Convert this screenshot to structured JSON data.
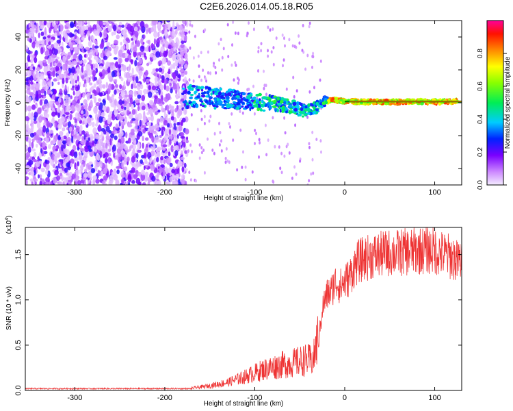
{
  "title": "C2E6.2026.014.05.18.R05",
  "chart_data": [
    {
      "type": "heatmap",
      "xlabel": "Height of straight line (km)",
      "ylabel": "Frequency (Hz)",
      "xlim": [
        -355,
        130
      ],
      "ylim": [
        -50,
        50
      ],
      "x_ticks": [
        -300,
        -200,
        -100,
        0,
        100
      ],
      "x_tick_labels": [
        "-300",
        "-200",
        "-100",
        "0",
        "100"
      ],
      "y_ticks": [
        -40,
        -20,
        0,
        20,
        40
      ],
      "y_tick_labels": [
        "-40",
        "-20",
        "0",
        "20",
        "40"
      ],
      "colorbar": {
        "label": "Normalized spectral amplitude",
        "range": [
          0,
          1
        ],
        "ticks": [
          0.0,
          0.2,
          0.4,
          0.6,
          0.8
        ],
        "tick_labels": [
          "0.0",
          "0.2",
          "0.4",
          "0.6",
          "0.8"
        ]
      },
      "ridge": [
        {
          "x": -175,
          "f": 4
        },
        {
          "x": -150,
          "f": 3
        },
        {
          "x": -120,
          "f": 2
        },
        {
          "x": -90,
          "f": 0
        },
        {
          "x": -70,
          "f": -1
        },
        {
          "x": -55,
          "f": -3
        },
        {
          "x": -45,
          "f": -5
        },
        {
          "x": -35,
          "f": -4
        },
        {
          "x": -25,
          "f": 0
        },
        {
          "x": -15,
          "f": 2
        },
        {
          "x": 0,
          "f": 1
        },
        {
          "x": 20,
          "f": 0.5
        },
        {
          "x": 60,
          "f": 0.5
        },
        {
          "x": 100,
          "f": 0.5
        },
        {
          "x": 130,
          "f": 1
        }
      ],
      "grid": false
    },
    {
      "type": "line",
      "xlabel": "Height of straight line (km)",
      "ylabel": "SNR (10 * v/v)",
      "y_multiplier": "(x10",
      "y_multiplier_exp": "4",
      "y_multiplier_close": ")",
      "xlim": [
        -355,
        130
      ],
      "ylim": [
        0,
        1.8
      ],
      "x_ticks": [
        -300,
        -200,
        -100,
        0,
        100
      ],
      "x_tick_labels": [
        "-300",
        "-200",
        "-100",
        "0",
        "100"
      ],
      "y_ticks": [
        0.0,
        0.5,
        1.0,
        1.5
      ],
      "y_tick_labels": [
        "0.0",
        "0.5",
        "1.0",
        "1.5"
      ],
      "series": [
        {
          "color": "#ee3333",
          "x": [
            -355,
            -300,
            -250,
            -200,
            -170,
            -150,
            -130,
            -110,
            -90,
            -70,
            -55,
            -45,
            -35,
            -30,
            -25,
            -20,
            -15,
            -10,
            -5,
            0,
            5,
            10,
            15,
            20,
            30,
            40,
            50,
            60,
            70,
            80,
            90,
            100,
            110,
            120,
            125,
            130
          ],
          "y": [
            0.02,
            0.02,
            0.02,
            0.02,
            0.02,
            0.04,
            0.07,
            0.12,
            0.18,
            0.22,
            0.24,
            0.26,
            0.26,
            0.45,
            0.9,
            1.05,
            1.1,
            1.2,
            1.15,
            1.2,
            1.25,
            1.35,
            1.42,
            1.45,
            1.48,
            1.5,
            1.52,
            1.52,
            1.53,
            1.54,
            1.55,
            1.54,
            1.5,
            1.47,
            1.42,
            1.45
          ]
        }
      ],
      "grid": false
    }
  ]
}
